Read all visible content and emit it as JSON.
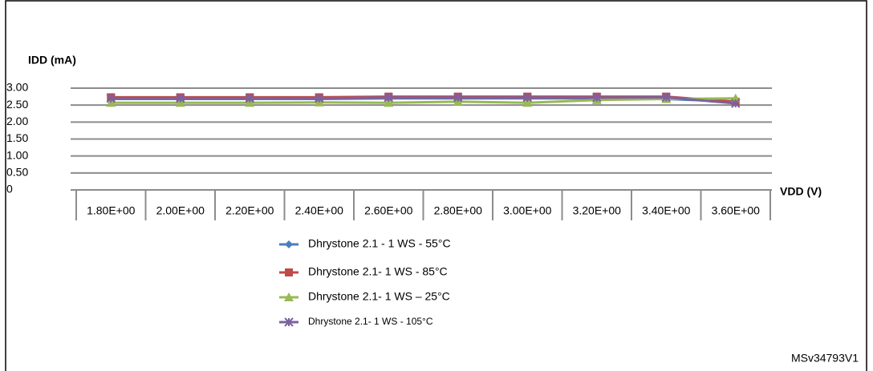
{
  "chart_data": {
    "type": "line",
    "y_label": "IDD (mA)",
    "x_label": "VDD (V)",
    "figure_id": "MSv34793V1",
    "categories": [
      "1.80E+00",
      "2.00E+00",
      "2.20E+00",
      "2.40E+00",
      "2.60E+00",
      "2.80E+00",
      "3.00E+00",
      "3.20E+00",
      "3.40E+00",
      "3.60E+00"
    ],
    "ylim": [
      0,
      3
    ],
    "yticks": [
      0,
      {
        "value": 0.5,
        "label": "0.50"
      },
      {
        "value": 1,
        "label": "1.00"
      },
      {
        "value": 1.5,
        "label": "1.50"
      },
      {
        "value": 2,
        "label": "2.00"
      },
      {
        "value": 2.5,
        "label": "2.50"
      },
      {
        "value": 3,
        "label": "3.00"
      }
    ],
    "grid": true,
    "series": [
      {
        "name": "Dhrystone 2.1 - 1 WS - 55°C",
        "color": "#4a7ebb",
        "marker": "diamond",
        "values": [
          2.68,
          2.68,
          2.68,
          2.68,
          2.7,
          2.7,
          2.7,
          2.7,
          2.68,
          2.6
        ]
      },
      {
        "name": "Dhrystone 2.1- 1 WS - 85°C",
        "color": "#be4b48",
        "marker": "square",
        "values": [
          2.73,
          2.73,
          2.73,
          2.73,
          2.75,
          2.75,
          2.75,
          2.75,
          2.75,
          2.6
        ]
      },
      {
        "name": "Dhrystone 2.1- 1 WS – 25°C",
        "color": "#98b954",
        "marker": "triangle",
        "values": [
          2.57,
          2.57,
          2.57,
          2.58,
          2.57,
          2.6,
          2.57,
          2.65,
          2.68,
          2.7
        ]
      },
      {
        "name": "Dhrystone 2.1- 1 WS - 105°C",
        "color": "#7d60a0",
        "marker": "star",
        "values": [
          2.7,
          2.7,
          2.7,
          2.7,
          2.72,
          2.72,
          2.72,
          2.72,
          2.73,
          2.55
        ]
      }
    ]
  }
}
